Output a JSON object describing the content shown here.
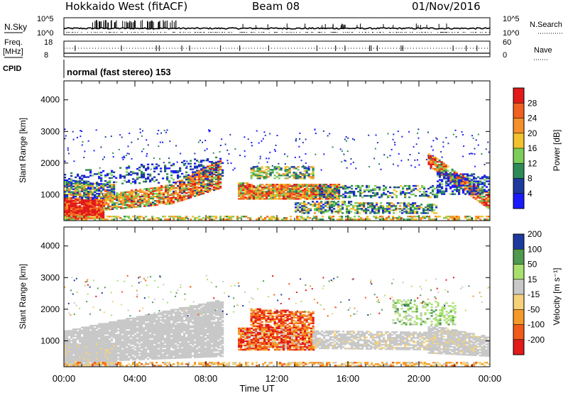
{
  "header": {
    "station": "Hokkaido West (fitACF)",
    "beam": "Beam 08",
    "date": "01/Nov/2016"
  },
  "status": {
    "nsky_label": "N.Sky",
    "nsky_ticks": [
      "10^5",
      "10^0"
    ],
    "nsearch_label": "N.Search",
    "nsearch_ticks": [
      "10^5",
      "10^0"
    ],
    "freq_label_1": "Freq.",
    "freq_label_2": "[MHz]",
    "freq_ticks": [
      "18",
      "8"
    ],
    "nave_label": "Nave",
    "nave_ticks": [
      "60",
      "0"
    ],
    "cpid_label": "CPID",
    "cpid_text": "normal (fast stereo) 153"
  },
  "colors": {
    "power_scale": [
      "#1a1aff",
      "#1f3a9e",
      "#2e8b57",
      "#7ccd5a",
      "#f2c12e",
      "#f5902a",
      "#f06020",
      "#e21a1a"
    ],
    "velocity_scale": [
      "#e21a1a",
      "#f25a1a",
      "#f59a2a",
      "#f5d27a",
      "#c8c8c8",
      "#a8e070",
      "#4f9a4f",
      "#1f3a9e"
    ]
  },
  "chart_data": [
    {
      "type": "heatmap",
      "panel": "power",
      "ylabel": "Slant Range [km]",
      "yticks": [
        "1000",
        "2000",
        "3000",
        "4000"
      ],
      "ylim": [
        180,
        4600
      ],
      "xticks": [
        "00:00",
        "04:00",
        "08:00",
        "12:00",
        "16:00",
        "20:00",
        "00:00"
      ],
      "xlim_hours": [
        0,
        24
      ],
      "colorbar_label": "Power [dB]",
      "colorbar_ticks": [
        "4",
        "8",
        "12",
        "16",
        "20",
        "24",
        "28"
      ],
      "colorbar_range": [
        0,
        32
      ]
    },
    {
      "type": "heatmap",
      "panel": "velocity",
      "ylabel": "Slant Range [km]",
      "yticks": [
        "1000",
        "2000",
        "3000",
        "4000"
      ],
      "ylim": [
        180,
        4600
      ],
      "xticks": [
        "00:00",
        "04:00",
        "08:00",
        "12:00",
        "16:00",
        "20:00",
        "00:00"
      ],
      "xlim_hours": [
        0,
        24
      ],
      "colorbar_label": "Velocity [m s⁻¹]",
      "colorbar_ticks": [
        "-200",
        "-100",
        "-50",
        "-15",
        "15",
        "50",
        "100",
        "200"
      ],
      "colorbar_range": [
        -250,
        250
      ],
      "xlabel": "Time UT"
    }
  ]
}
